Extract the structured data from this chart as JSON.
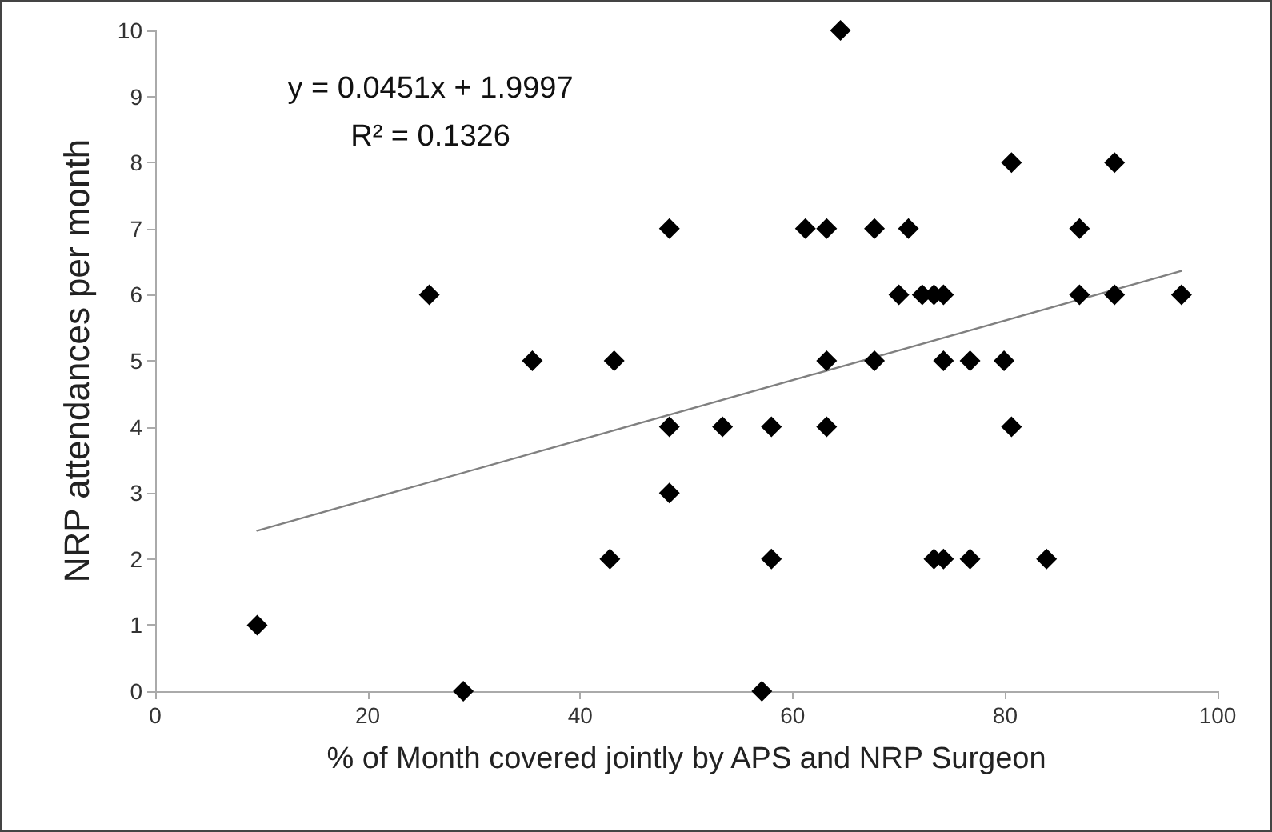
{
  "chart_data": {
    "type": "scatter",
    "xlabel": "% of Month covered jointly by APS and NRP Surgeon",
    "ylabel": "NRP attendances per month",
    "annotations": [
      "y = 0.0451x + 1.9997",
      "R² = 0.1326"
    ],
    "xlim": [
      0,
      100
    ],
    "xticks": [
      0,
      20,
      40,
      60,
      80,
      100
    ],
    "ylim": [
      0,
      10
    ],
    "yticks": [
      0,
      1,
      2,
      3,
      4,
      5,
      6,
      7,
      8,
      9,
      10
    ],
    "grid": false,
    "marker": "diamond",
    "series": [
      {
        "color": "#000000",
        "x": [
          9.6,
          25.8,
          29.0,
          35.5,
          43.2,
          42.8,
          48.4,
          48.4,
          48.4,
          53.4,
          57.1,
          58.0,
          58.0,
          61.2,
          63.2,
          63.2,
          63.2,
          64.5,
          67.7,
          67.7,
          70.0,
          70.9,
          72.2,
          73.3,
          73.3,
          74.2,
          74.2,
          74.2,
          76.7,
          76.7,
          79.9,
          80.6,
          80.6,
          83.9,
          87.0,
          87.0,
          90.3,
          90.3,
          96.6
        ],
        "values": [
          1,
          6,
          0,
          5,
          5,
          2,
          7,
          4,
          3,
          4,
          0,
          4,
          2,
          7,
          7,
          5,
          4,
          10,
          7,
          5,
          6,
          7,
          6,
          6,
          2,
          6,
          5,
          2,
          5,
          2,
          5,
          8,
          4,
          2,
          7,
          6,
          8,
          6,
          6
        ]
      },
      {
        "type": "line",
        "color": "#808080",
        "marker": "none",
        "x": [
          9.6,
          96.6
        ],
        "values": [
          2.43,
          6.36
        ]
      }
    ]
  }
}
